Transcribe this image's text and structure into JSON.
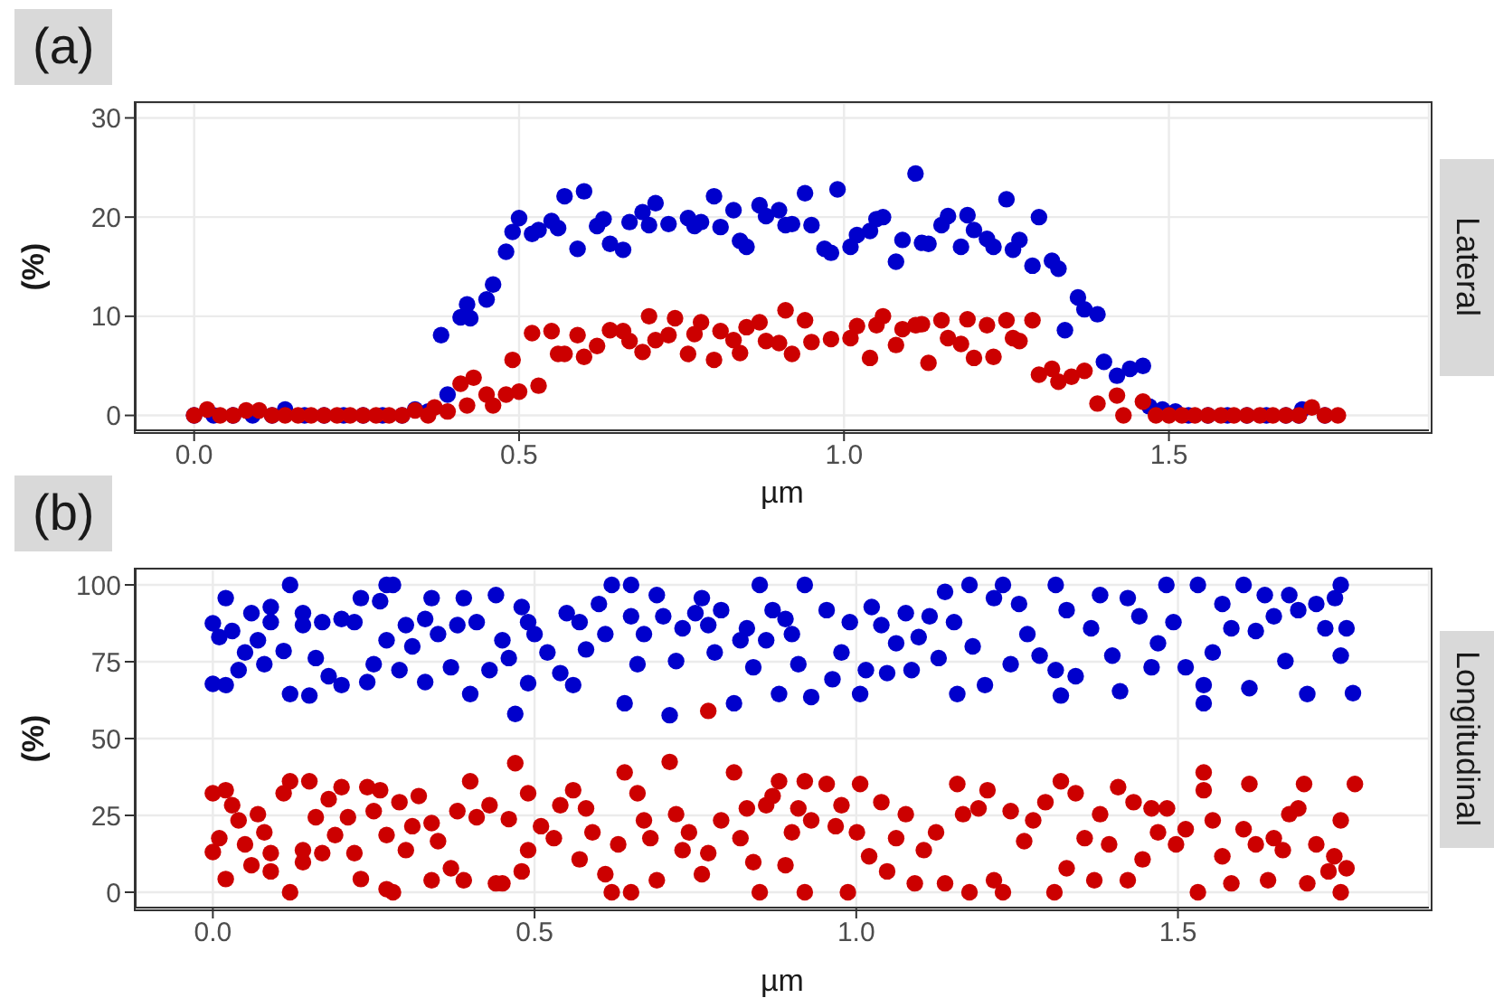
{
  "chart_data": [
    {
      "type": "scatter",
      "title": "(a)",
      "annotations": [
        "Lateral"
      ],
      "xlabel": "µm",
      "ylabel": "(%)",
      "marker": "circle",
      "grid": true,
      "legend": false,
      "xlim": [
        -0.09,
        1.9
      ],
      "ylim": [
        -1.5,
        31.5
      ],
      "xticks": [
        {
          "value": 0,
          "label": "0.0"
        },
        {
          "value": 0.5,
          "label": "0.5"
        },
        {
          "value": 1,
          "label": "1.0"
        },
        {
          "value": 1.5,
          "label": "1.5"
        }
      ],
      "yticks": [
        0,
        10,
        20,
        30
      ],
      "series": [
        {
          "color": "#0000cc",
          "x": [
            0.0,
            0.03,
            0.06,
            0.09,
            0.12,
            0.14,
            0.17,
            0.2,
            0.23,
            0.26,
            0.29,
            0.32,
            0.34,
            0.36,
            0.38,
            0.39,
            0.41,
            0.42,
            0.425,
            0.45,
            0.46,
            0.48,
            0.49,
            0.5,
            0.52,
            0.53,
            0.55,
            0.56,
            0.57,
            0.59,
            0.6,
            0.62,
            0.63,
            0.64,
            0.66,
            0.67,
            0.69,
            0.7,
            0.71,
            0.73,
            0.76,
            0.77,
            0.78,
            0.8,
            0.81,
            0.83,
            0.84,
            0.85,
            0.87,
            0.88,
            0.9,
            0.91,
            0.92,
            0.94,
            0.95,
            0.97,
            0.98,
            0.99,
            1.01,
            1.02,
            1.04,
            1.05,
            1.06,
            1.08,
            1.09,
            1.11,
            1.12,
            1.13,
            1.15,
            1.16,
            1.18,
            1.19,
            1.2,
            1.22,
            1.23,
            1.25,
            1.26,
            1.27,
            1.29,
            1.3,
            1.32,
            1.33,
            1.34,
            1.36,
            1.37,
            1.39,
            1.4,
            1.42,
            1.44,
            1.46,
            1.47,
            1.49,
            1.51,
            1.53,
            1.56,
            1.59,
            1.62,
            1.65,
            1.68,
            1.7,
            1.705,
            1.74
          ],
          "values": [
            0,
            0,
            0,
            0,
            0,
            0.6,
            0,
            0,
            0,
            0,
            0,
            0,
            0.6,
            0.4,
            8.1,
            2.1,
            9.9,
            11.2,
            9.8,
            11.7,
            13.2,
            16.5,
            18.5,
            19.9,
            18.3,
            18.7,
            19.6,
            18.9,
            22.1,
            16.8,
            22.6,
            19.1,
            19.8,
            17.3,
            16.7,
            19.5,
            20.5,
            19.2,
            21.4,
            19.3,
            19.9,
            19.1,
            19.5,
            22.1,
            19.0,
            20.7,
            17.6,
            17.0,
            21.2,
            20.1,
            20.7,
            19.2,
            19.3,
            22.4,
            19.2,
            16.8,
            16.4,
            22.8,
            17.0,
            18.2,
            18.6,
            19.8,
            20.0,
            15.5,
            17.7,
            24.4,
            17.4,
            17.3,
            19.2,
            20.1,
            17.0,
            20.2,
            18.7,
            17.8,
            17.0,
            21.8,
            16.7,
            17.7,
            15.1,
            20.0,
            15.6,
            14.8,
            8.6,
            11.9,
            10.7,
            10.2,
            5.4,
            4.0,
            4.7,
            5.0,
            0.9,
            0.6,
            0.4,
            0,
            0,
            0,
            0,
            0,
            0,
            0,
            0.6,
            0
          ]
        },
        {
          "color": "#cc0000",
          "x": [
            0.0,
            0.02,
            0.04,
            0.06,
            0.08,
            0.1,
            0.12,
            0.14,
            0.16,
            0.18,
            0.2,
            0.22,
            0.24,
            0.26,
            0.28,
            0.3,
            0.32,
            0.34,
            0.36,
            0.37,
            0.39,
            0.41,
            0.42,
            0.43,
            0.45,
            0.46,
            0.48,
            0.49,
            0.5,
            0.52,
            0.53,
            0.55,
            0.56,
            0.57,
            0.59,
            0.6,
            0.62,
            0.64,
            0.66,
            0.67,
            0.69,
            0.7,
            0.71,
            0.73,
            0.74,
            0.76,
            0.77,
            0.78,
            0.8,
            0.81,
            0.83,
            0.84,
            0.85,
            0.87,
            0.88,
            0.9,
            0.91,
            0.92,
            0.94,
            0.95,
            0.98,
            1.01,
            1.02,
            1.04,
            1.05,
            1.06,
            1.08,
            1.09,
            1.11,
            1.12,
            1.13,
            1.15,
            1.16,
            1.18,
            1.19,
            1.2,
            1.22,
            1.23,
            1.25,
            1.26,
            1.27,
            1.29,
            1.3,
            1.32,
            1.33,
            1.35,
            1.37,
            1.39,
            1.42,
            1.43,
            1.46,
            1.48,
            1.5,
            1.52,
            1.54,
            1.56,
            1.58,
            1.6,
            1.62,
            1.64,
            1.66,
            1.68,
            1.7,
            1.72,
            1.74,
            1.76
          ],
          "values": [
            0,
            0.6,
            0,
            0,
            0.5,
            0.5,
            0,
            0,
            0,
            0,
            0,
            0,
            0,
            0,
            0,
            0,
            0,
            0.5,
            0,
            0.8,
            0.4,
            3.2,
            1.0,
            3.8,
            2.1,
            1.0,
            2.1,
            5.6,
            2.4,
            8.3,
            3.0,
            8.5,
            6.2,
            6.2,
            8.1,
            5.9,
            7.0,
            8.6,
            8.5,
            7.5,
            6.4,
            10.0,
            7.6,
            8.1,
            9.8,
            6.2,
            8.2,
            9.4,
            5.6,
            8.5,
            7.6,
            6.3,
            8.9,
            9.4,
            7.5,
            7.3,
            10.6,
            6.2,
            9.6,
            7.4,
            7.7,
            7.8,
            9.0,
            5.8,
            9.1,
            10.0,
            7.1,
            8.7,
            9.1,
            9.2,
            5.3,
            9.6,
            7.8,
            7.2,
            9.7,
            5.8,
            9.1,
            5.9,
            9.6,
            7.8,
            7.5,
            9.6,
            4.1,
            4.7,
            3.4,
            3.9,
            4.5,
            1.2,
            2.0,
            0,
            1.4,
            0,
            0,
            0,
            0,
            0,
            0,
            0,
            0,
            0,
            0,
            0,
            0,
            0.8,
            0,
            0
          ]
        }
      ]
    },
    {
      "type": "scatter",
      "title": "(b)",
      "annotations": [
        "Longitudinal"
      ],
      "xlabel": "µm",
      "ylabel": "(%)",
      "marker": "circle",
      "grid": true,
      "legend": false,
      "xlim": [
        -0.12,
        1.89
      ],
      "ylim": [
        -5,
        105
      ],
      "xticks": [
        {
          "value": 0,
          "label": "0.0"
        },
        {
          "value": 0.5,
          "label": "0.5"
        },
        {
          "value": 1,
          "label": "1.0"
        },
        {
          "value": 1.5,
          "label": "1.5"
        }
      ],
      "yticks": [
        0,
        25,
        50,
        75,
        100
      ],
      "series": [
        {
          "color": "#0000cc",
          "x": [
            0,
            0,
            0.01,
            0.02,
            0.02,
            0.03,
            0.04,
            0.05,
            0.06,
            0.07,
            0.08,
            0.09,
            0.09,
            0.11,
            0.12,
            0.12,
            0.14,
            0.14,
            0.15,
            0.16,
            0.17,
            0.18,
            0.2,
            0.2,
            0.22,
            0.23,
            0.24,
            0.25,
            0.26,
            0.27,
            0.28,
            0.27,
            0.29,
            0.3,
            0.31,
            0.33,
            0.33,
            0.34,
            0.35,
            0.37,
            0.38,
            0.39,
            0.4,
            0.41,
            0.43,
            0.44,
            0.45,
            0.46,
            0.47,
            0.48,
            0.49,
            0.49,
            0.5,
            0.52,
            0.54,
            0.55,
            0.56,
            0.57,
            0.58,
            0.6,
            0.61,
            0.62,
            0.64,
            0.65,
            0.65,
            0.66,
            0.67,
            0.69,
            0.7,
            0.71,
            0.72,
            0.73,
            0.75,
            0.76,
            0.77,
            0.78,
            0.79,
            0.81,
            0.82,
            0.83,
            0.84,
            0.85,
            0.86,
            0.87,
            0.88,
            0.89,
            0.9,
            0.91,
            0.92,
            0.93,
            0.954,
            0.963,
            0.977,
            0.99,
            1.006,
            1.015,
            1.024,
            1.039,
            1.048,
            1.062,
            1.077,
            1.086,
            1.097,
            1.114,
            1.128,
            1.138,
            1.152,
            1.157,
            1.176,
            1.181,
            1.2,
            1.214,
            1.228,
            1.24,
            1.253,
            1.266,
            1.285,
            1.31,
            1.31,
            1.318,
            1.327,
            1.341,
            1.365,
            1.379,
            1.398,
            1.41,
            1.422,
            1.44,
            1.459,
            1.469,
            1.482,
            1.493,
            1.512,
            1.531,
            1.54,
            1.54,
            1.554,
            1.569,
            1.583,
            1.602,
            1.611,
            1.621,
            1.635,
            1.649,
            1.667,
            1.673,
            1.687,
            1.701,
            1.715,
            1.729,
            1.744,
            1.753,
            1.753,
            1.762,
            1.772
          ],
          "values": [
            87.5,
            67.8,
            83,
            95.7,
            67.4,
            85,
            72.3,
            78,
            90.8,
            82,
            74.2,
            92.8,
            87.9,
            78.5,
            100,
            64.5,
            90.8,
            86.9,
            64,
            76.2,
            87.9,
            70.3,
            88.9,
            67.4,
            87.9,
            95.7,
            68.4,
            74.2,
            94.7,
            100,
            100,
            82,
            72.3,
            86.9,
            80,
            68.4,
            88.9,
            95.7,
            84,
            73.2,
            86.9,
            95.7,
            64.5,
            87.9,
            72.3,
            96.7,
            82,
            76.2,
            58,
            92.8,
            68,
            87.9,
            84,
            78,
            71.3,
            90.8,
            67.4,
            87.9,
            79,
            93.8,
            84,
            100,
            61.5,
            100,
            89.8,
            74.2,
            84,
            96.7,
            89.8,
            57.6,
            75.2,
            85.9,
            90.8,
            95.7,
            86.9,
            78,
            91.8,
            61.5,
            82,
            85.9,
            73.2,
            100,
            82,
            91.8,
            64.5,
            88.9,
            84,
            74.2,
            100,
            63.5,
            91.8,
            69.3,
            78,
            87.9,
            64.5,
            72.3,
            92.8,
            86.9,
            71.3,
            81,
            90.8,
            72.3,
            83,
            89.8,
            76.2,
            97.7,
            87.9,
            64.5,
            100,
            80,
            67.4,
            95.7,
            100,
            74.2,
            93.8,
            84,
            77,
            100,
            72.3,
            64,
            91.8,
            70.3,
            85.9,
            96.7,
            77,
            65.4,
            95.7,
            89.8,
            73.2,
            81,
            100,
            87.9,
            73.2,
            100,
            67.4,
            61.5,
            78,
            93.8,
            85.9,
            100,
            66.4,
            85,
            96.7,
            89.8,
            75.2,
            96.7,
            91.8,
            64.5,
            93.8,
            85.9,
            95.7,
            100,
            77,
            85.9,
            64.8
          ]
        },
        {
          "color": "#cc0000",
          "x": [
            0,
            0,
            0.01,
            0.02,
            0.02,
            0.03,
            0.04,
            0.05,
            0.06,
            0.07,
            0.08,
            0.09,
            0.09,
            0.11,
            0.12,
            0.12,
            0.14,
            0.14,
            0.15,
            0.16,
            0.17,
            0.18,
            0.19,
            0.2,
            0.21,
            0.22,
            0.23,
            0.24,
            0.25,
            0.26,
            0.27,
            0.28,
            0.27,
            0.29,
            0.3,
            0.31,
            0.32,
            0.34,
            0.34,
            0.35,
            0.37,
            0.38,
            0.39,
            0.4,
            0.41,
            0.43,
            0.44,
            0.45,
            0.46,
            0.47,
            0.48,
            0.49,
            0.49,
            0.51,
            0.53,
            0.54,
            0.56,
            0.57,
            0.58,
            0.59,
            0.61,
            0.62,
            0.63,
            0.64,
            0.65,
            0.66,
            0.67,
            0.68,
            0.69,
            0.71,
            0.72,
            0.73,
            0.74,
            0.76,
            0.77,
            0.77,
            0.79,
            0.81,
            0.82,
            0.83,
            0.84,
            0.85,
            0.86,
            0.87,
            0.88,
            0.89,
            0.9,
            0.91,
            0.92,
            0.92,
            0.93,
            0.954,
            0.968,
            0.977,
            0.987,
            1.001,
            1.006,
            1.02,
            1.039,
            1.048,
            1.062,
            1.077,
            1.091,
            1.105,
            1.124,
            1.138,
            1.157,
            1.166,
            1.176,
            1.19,
            1.204,
            1.214,
            1.228,
            1.24,
            1.261,
            1.275,
            1.294,
            1.308,
            1.318,
            1.327,
            1.341,
            1.355,
            1.37,
            1.379,
            1.393,
            1.407,
            1.422,
            1.431,
            1.445,
            1.459,
            1.469,
            1.483,
            1.497,
            1.512,
            1.531,
            1.54,
            1.54,
            1.554,
            1.569,
            1.583,
            1.602,
            1.611,
            1.621,
            1.64,
            1.649,
            1.663,
            1.673,
            1.687,
            1.696,
            1.701,
            1.715,
            1.734,
            1.743,
            1.753,
            1.753,
            1.762,
            1.775
          ],
          "values": [
            32.2,
            13.1,
            17.6,
            33.2,
            4.3,
            28.3,
            23.4,
            15.6,
            8.8,
            25.4,
            19.5,
            12.7,
            6.8,
            32.2,
            0,
            36.1,
            13.7,
            9.8,
            36.1,
            24.4,
            12.7,
            30.3,
            18.6,
            34.2,
            24.4,
            12.7,
            4.3,
            34.2,
            26.4,
            33.2,
            1,
            0,
            18.6,
            29.3,
            13.7,
            21.5,
            31.3,
            3.9,
            22.5,
            16.6,
            7.8,
            26.4,
            3.9,
            36.1,
            24.4,
            28.3,
            2.9,
            2.9,
            23.8,
            42,
            6.8,
            32.2,
            13.7,
            21.5,
            17.6,
            28.3,
            33.2,
            10.7,
            27.3,
            19.5,
            5.9,
            0,
            15.6,
            39,
            0,
            32.2,
            23.4,
            17.6,
            3.9,
            42.4,
            25.4,
            13.7,
            19.5,
            5.9,
            12.7,
            59,
            23.4,
            39,
            17.6,
            27.3,
            9.8,
            0,
            28.3,
            31.3,
            36.1,
            8.8,
            19.5,
            27.3,
            0,
            36.1,
            23.4,
            35.2,
            21.5,
            28.3,
            0,
            19.5,
            35.2,
            11.7,
            29.3,
            6.8,
            17.6,
            25.4,
            2.9,
            13.7,
            19.5,
            2.9,
            35.2,
            25.4,
            0,
            27.3,
            33.2,
            3.9,
            0,
            26.4,
            16.6,
            23.4,
            29.3,
            0,
            36.1,
            7.8,
            32.2,
            17.6,
            3.9,
            25.4,
            15.6,
            34.2,
            3.9,
            29.3,
            10.7,
            27.3,
            19.5,
            27.3,
            15.6,
            20.5,
            0,
            39,
            33.2,
            23.4,
            11.7,
            2.9,
            20.5,
            35.2,
            15.6,
            3.9,
            17.6,
            13.7,
            25.4,
            27.3,
            35.2,
            2.9,
            15.6,
            6.8,
            11.7,
            23.4,
            0,
            7.8,
            35.2
          ]
        }
      ]
    }
  ]
}
